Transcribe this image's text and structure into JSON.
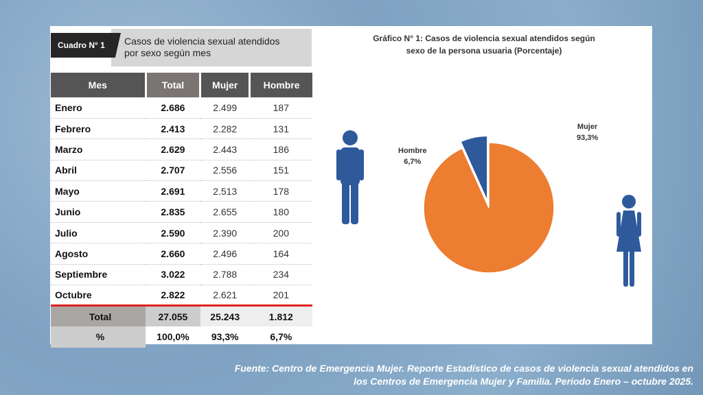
{
  "table": {
    "badge": "Cuadro N° 1",
    "title_line1": "Casos de violencia sexual atendidos",
    "title_line2": "por sexo según mes",
    "headers": [
      "Mes",
      "Total",
      "Mujer",
      "Hombre"
    ],
    "rows": [
      [
        "Enero",
        "2.686",
        "2.499",
        "187"
      ],
      [
        "Febrero",
        "2.413",
        "2.282",
        "131"
      ],
      [
        "Marzo",
        "2.629",
        "2.443",
        "186"
      ],
      [
        "Abril",
        "2.707",
        "2.556",
        "151"
      ],
      [
        "Mayo",
        "2.691",
        "2.513",
        "178"
      ],
      [
        "Junio",
        "2.835",
        "2.655",
        "180"
      ],
      [
        "Julio",
        "2.590",
        "2.390",
        "200"
      ],
      [
        "Agosto",
        "2.660",
        "2.496",
        "164"
      ],
      [
        "Septiembre",
        "3.022",
        "2.788",
        "234"
      ],
      [
        "Octubre",
        "2.822",
        "2.621",
        "201"
      ]
    ],
    "total": [
      "Total",
      "27.055",
      "25.243",
      "1.812"
    ],
    "percent": [
      "%",
      "100,0%",
      "93,3%",
      "6,7%"
    ]
  },
  "chart_data": {
    "type": "pie",
    "title": "Gráfico N° 1: Casos de violencia sexual atendidos según",
    "subtitle": "sexo de la persona usuaria (Porcentaje)",
    "slices": [
      {
        "label": "Hombre",
        "value": 6.7,
        "display": "6,7%",
        "color": "#2e5a9c"
      },
      {
        "label": "Mujer",
        "value": 93.3,
        "display": "93,3%",
        "color": "#ed7d31"
      }
    ]
  },
  "footer": {
    "line1": "Fuente: Centro de Emergencia Mujer. Reporte Estadístico de casos de violencia sexual atendidos en",
    "line2": "los Centros de Emergencia Mujer y Familia. Periodo Enero – octubre 2025."
  }
}
